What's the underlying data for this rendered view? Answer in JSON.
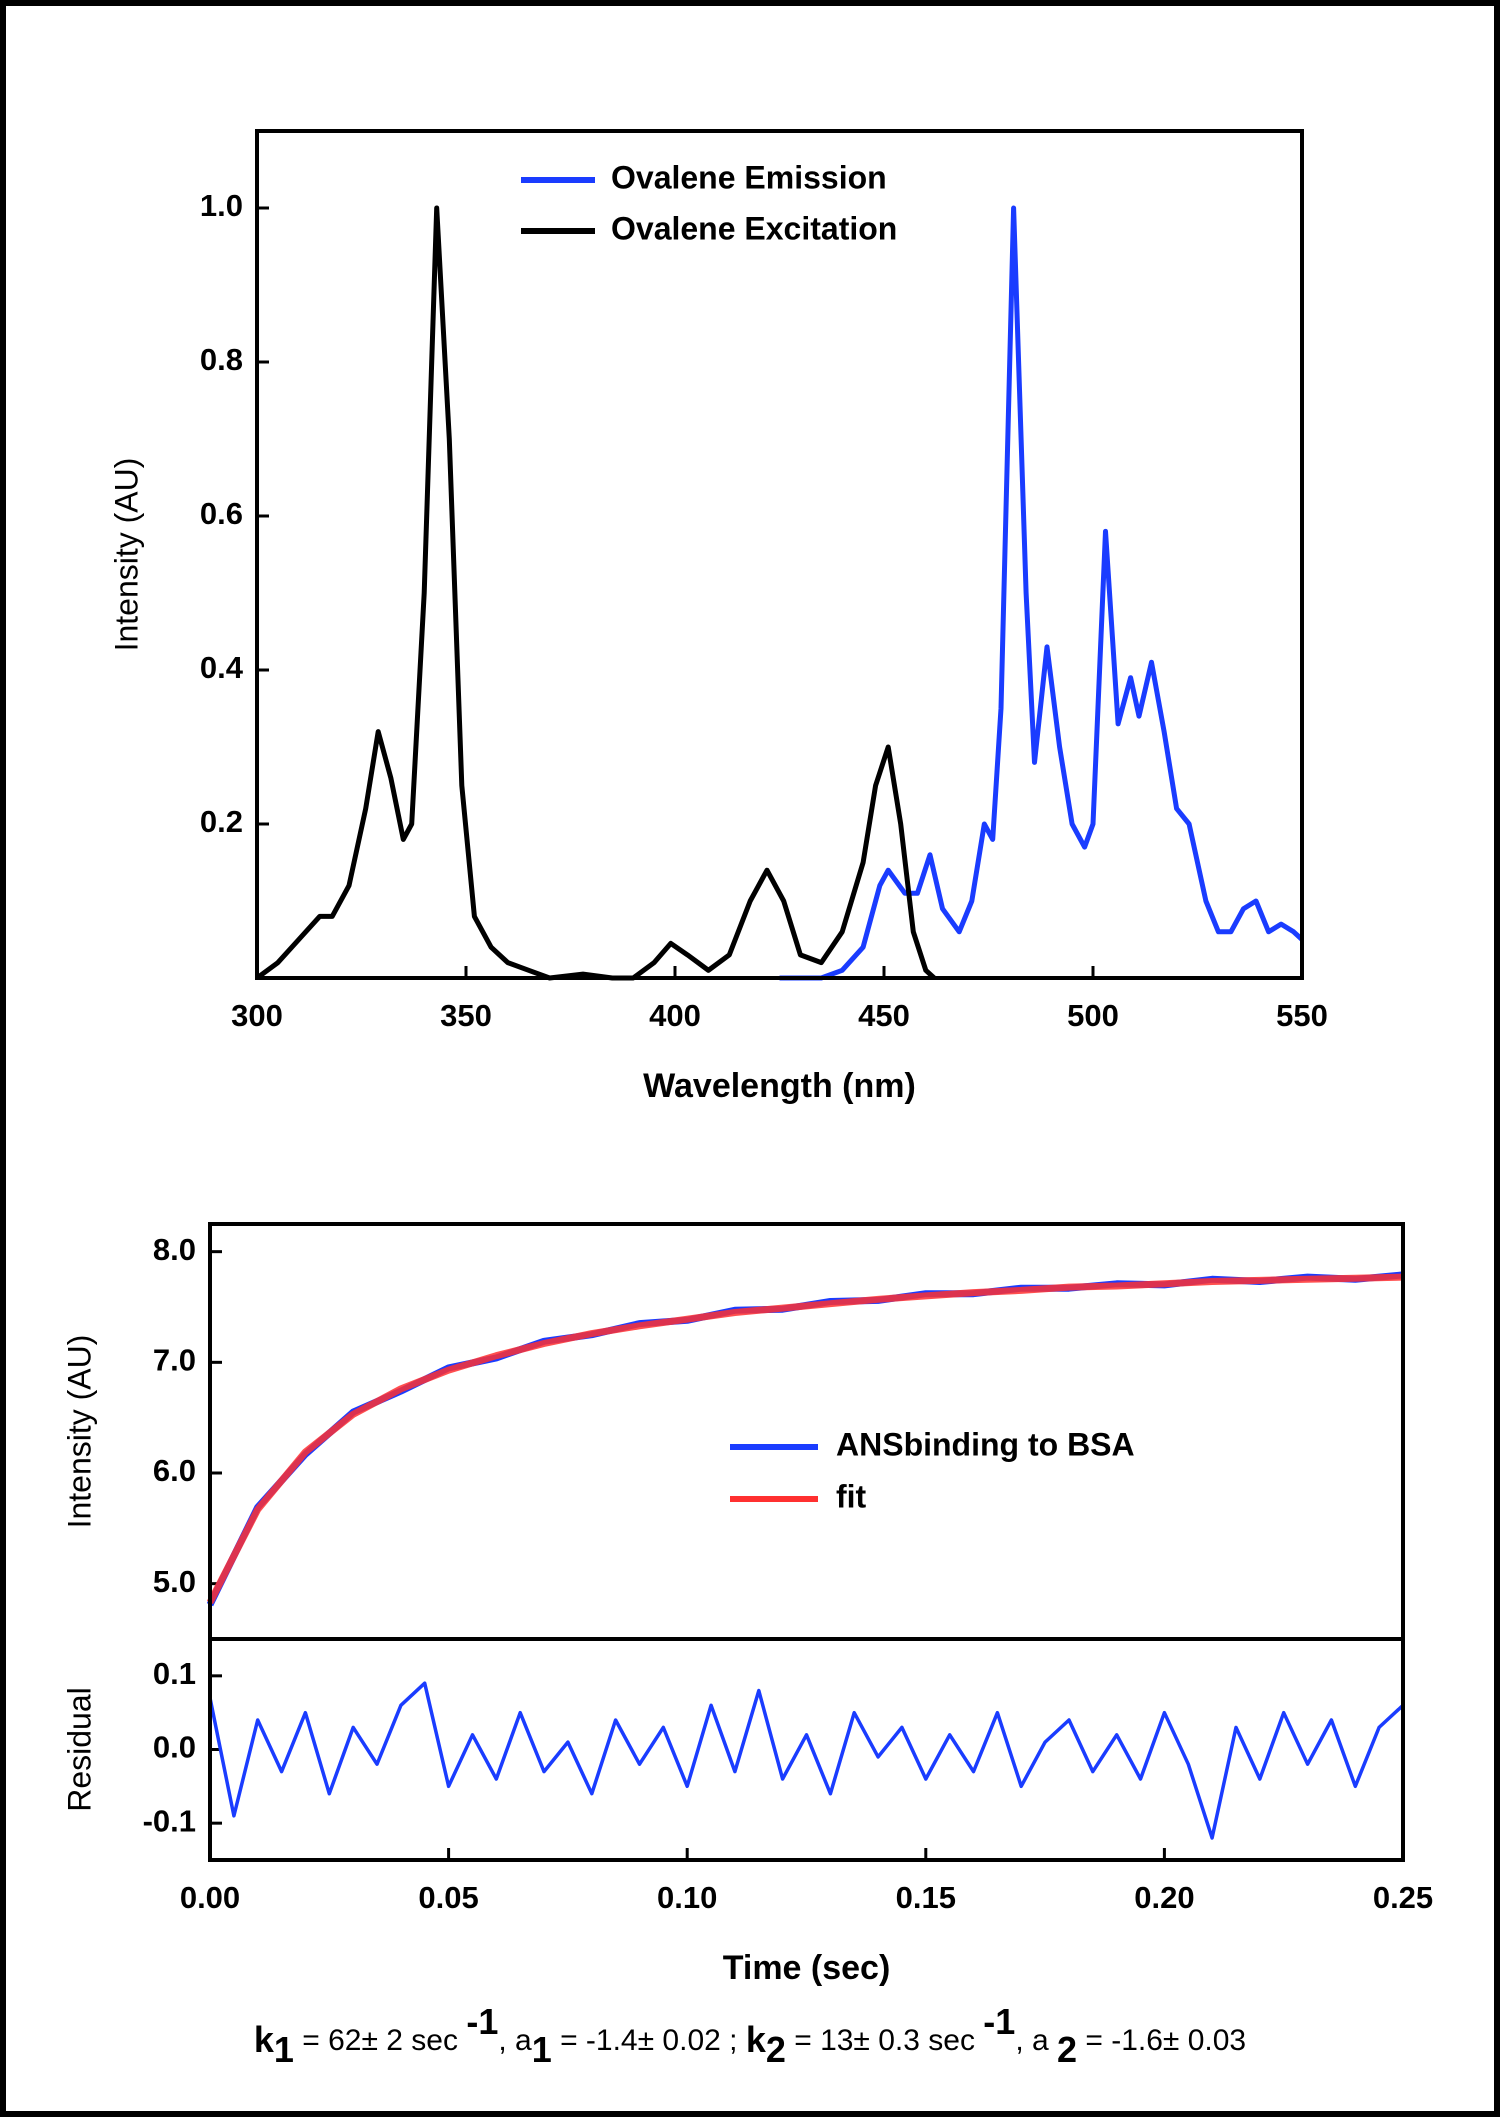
{
  "chart_data": [
    {
      "type": "line",
      "xlabel": "Wavelength (nm)",
      "ylabel": "Intensity (AU)",
      "xlim": [
        300,
        550
      ],
      "xticks": [
        300,
        350,
        400,
        450,
        500,
        550
      ],
      "ylim": [
        0,
        1.1
      ],
      "yticks": [
        0.2,
        0.4,
        0.6,
        0.8,
        {
          "value": 1,
          "label": "1.0"
        }
      ],
      "series": [
        {
          "name": "Ovalene Emission",
          "color": "#1a3cff",
          "x": [
            425,
            435,
            440,
            445,
            449,
            451,
            455,
            458,
            461,
            464,
            468,
            471,
            474,
            476,
            478,
            481,
            484,
            486,
            489,
            492,
            495,
            498,
            500,
            503,
            506,
            509,
            511,
            514,
            517,
            520,
            523,
            527,
            530,
            533,
            536,
            539,
            542,
            545,
            548,
            550
          ],
          "values": [
            0,
            0,
            0.01,
            0.04,
            0.12,
            0.14,
            0.11,
            0.11,
            0.16,
            0.09,
            0.06,
            0.1,
            0.2,
            0.18,
            0.35,
            1.0,
            0.5,
            0.28,
            0.43,
            0.3,
            0.2,
            0.17,
            0.2,
            0.58,
            0.33,
            0.39,
            0.34,
            0.41,
            0.32,
            0.22,
            0.2,
            0.1,
            0.06,
            0.06,
            0.09,
            0.1,
            0.06,
            0.07,
            0.06,
            0.05
          ]
        },
        {
          "name": "Ovalene Excitation",
          "color": "#000000",
          "x": [
            300,
            305,
            310,
            315,
            318,
            322,
            326,
            329,
            332,
            335,
            337,
            340,
            343,
            346,
            349,
            352,
            356,
            360,
            365,
            370,
            378,
            385,
            390,
            395,
            399,
            403,
            408,
            413,
            418,
            422,
            426,
            430,
            435,
            440,
            445,
            448,
            451,
            454,
            457,
            460,
            462
          ],
          "values": [
            0,
            0.02,
            0.05,
            0.08,
            0.08,
            0.12,
            0.22,
            0.32,
            0.26,
            0.18,
            0.2,
            0.5,
            1.0,
            0.7,
            0.25,
            0.08,
            0.04,
            0.02,
            0.01,
            0,
            0.005,
            0,
            0,
            0.02,
            0.045,
            0.03,
            0.01,
            0.03,
            0.1,
            0.14,
            0.1,
            0.03,
            0.02,
            0.06,
            0.15,
            0.25,
            0.3,
            0.2,
            0.06,
            0.01,
            0
          ]
        }
      ]
    },
    {
      "type": "line",
      "ylabel": "Intensity (AU)",
      "xlim": [
        0,
        0.25
      ],
      "ylim": [
        4.5,
        8.25
      ],
      "yticks": [
        {
          "value": 5,
          "label": "5.0"
        },
        {
          "value": 6,
          "label": "6.0"
        },
        {
          "value": 7,
          "label": "7.0"
        },
        {
          "value": 8,
          "label": "8.0"
        }
      ],
      "series": [
        {
          "name": "ANSbinding to BSA",
          "color": "#1a3cff",
          "x": [
            0,
            0.01,
            0.02,
            0.03,
            0.04,
            0.05,
            0.06,
            0.07,
            0.08,
            0.09,
            0.1,
            0.11,
            0.12,
            0.13,
            0.14,
            0.15,
            0.16,
            0.17,
            0.18,
            0.19,
            0.2,
            0.21,
            0.22,
            0.23,
            0.24,
            0.25
          ],
          "values": [
            4.81,
            5.69,
            6.17,
            6.55,
            6.74,
            6.95,
            7.04,
            7.19,
            7.25,
            7.35,
            7.38,
            7.47,
            7.48,
            7.55,
            7.56,
            7.62,
            7.62,
            7.67,
            7.67,
            7.71,
            7.7,
            7.75,
            7.73,
            7.77,
            7.75,
            7.79
          ]
        },
        {
          "name": "fit",
          "color": "#ff3030",
          "x": [
            0,
            0.01,
            0.02,
            0.03,
            0.04,
            0.05,
            0.06,
            0.07,
            0.08,
            0.09,
            0.1,
            0.11,
            0.12,
            0.13,
            0.14,
            0.15,
            0.16,
            0.17,
            0.18,
            0.19,
            0.2,
            0.21,
            0.22,
            0.23,
            0.24,
            0.25
          ],
          "values": [
            4.83,
            5.67,
            6.19,
            6.53,
            6.76,
            6.93,
            7.06,
            7.17,
            7.26,
            7.33,
            7.39,
            7.45,
            7.49,
            7.53,
            7.57,
            7.6,
            7.63,
            7.65,
            7.68,
            7.69,
            7.71,
            7.73,
            7.74,
            7.75,
            7.76,
            7.77
          ]
        }
      ]
    },
    {
      "type": "line",
      "xlabel": "Time (sec)",
      "ylabel": "Residual",
      "xlim": [
        0,
        0.25
      ],
      "xticks": [
        {
          "value": 0,
          "label": "0.00"
        },
        0.05,
        {
          "value": 0.1,
          "label": "0.10"
        },
        0.15,
        {
          "value": 0.2,
          "label": "0.20"
        },
        0.25
      ],
      "ylim": [
        -0.15,
        0.15
      ],
      "yticks": [
        -0.1,
        {
          "value": 0,
          "label": "0.0"
        },
        0.1
      ],
      "series": [
        {
          "color": "#1a3cff",
          "x": [
            0,
            0.005,
            0.01,
            0.015,
            0.02,
            0.025,
            0.03,
            0.035,
            0.04,
            0.045,
            0.05,
            0.055,
            0.06,
            0.065,
            0.07,
            0.075,
            0.08,
            0.085,
            0.09,
            0.095,
            0.1,
            0.105,
            0.11,
            0.115,
            0.12,
            0.125,
            0.13,
            0.135,
            0.14,
            0.145,
            0.15,
            0.155,
            0.16,
            0.165,
            0.17,
            0.175,
            0.18,
            0.185,
            0.19,
            0.195,
            0.2,
            0.205,
            0.21,
            0.215,
            0.22,
            0.225,
            0.23,
            0.235,
            0.24,
            0.245,
            0.25
          ],
          "values": [
            0.07,
            -0.09,
            0.04,
            -0.03,
            0.05,
            -0.06,
            0.03,
            -0.02,
            0.06,
            0.09,
            -0.05,
            0.02,
            -0.04,
            0.05,
            -0.03,
            0.01,
            -0.06,
            0.04,
            -0.02,
            0.03,
            -0.05,
            0.06,
            -0.03,
            0.08,
            -0.04,
            0.02,
            -0.06,
            0.05,
            -0.01,
            0.03,
            -0.04,
            0.02,
            -0.03,
            0.05,
            -0.05,
            0.01,
            0.04,
            -0.03,
            0.02,
            -0.04,
            0.05,
            -0.02,
            -0.12,
            0.03,
            -0.04,
            0.05,
            -0.02,
            0.04,
            -0.05,
            0.03,
            0.06
          ]
        }
      ]
    }
  ],
  "fit_parameters": [
    "k",
    "1",
    " = 62± 2 sec ",
    "-1",
    ",  a",
    "1",
    " = -1.4± 0.02 ;  ",
    "k",
    "2",
    " = 13± 0.3 sec ",
    "-1",
    ",  a ",
    "2",
    " = -1.6± 0.03"
  ]
}
